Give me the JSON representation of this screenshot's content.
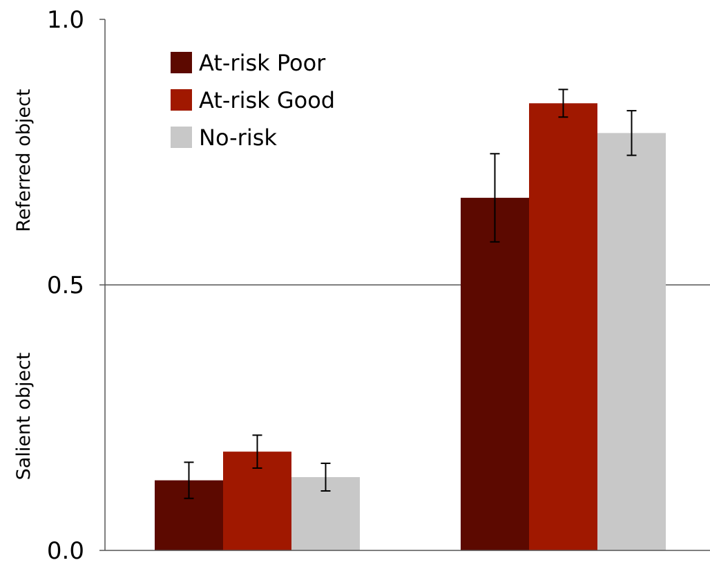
{
  "chart_data": {
    "type": "bar",
    "title": "",
    "xlabel": "",
    "ylabels": [
      "Referred object",
      "Salient object"
    ],
    "categories": [
      "",
      ""
    ],
    "ylim": [
      0,
      1
    ],
    "yticks": [
      {
        "value": 0.0,
        "label": "0.0"
      },
      {
        "value": 0.5,
        "label": "0.5"
      },
      {
        "value": 1.0,
        "label": "1.0"
      }
    ],
    "grid_lines": [
      0.5
    ],
    "legend": {
      "position": "top-left"
    },
    "series": [
      {
        "name": "At-risk Poor",
        "color": "#5c0900",
        "values": [
          0.132,
          0.664
        ],
        "errors": [
          0.034,
          0.083
        ]
      },
      {
        "name": "At-risk Good",
        "color": "#a01800",
        "values": [
          0.186,
          0.842
        ],
        "errors": [
          0.031,
          0.026
        ]
      },
      {
        "name": "No-risk",
        "color": "#c8c8c8",
        "values": [
          0.138,
          0.786
        ],
        "errors": [
          0.026,
          0.042
        ]
      }
    ]
  }
}
